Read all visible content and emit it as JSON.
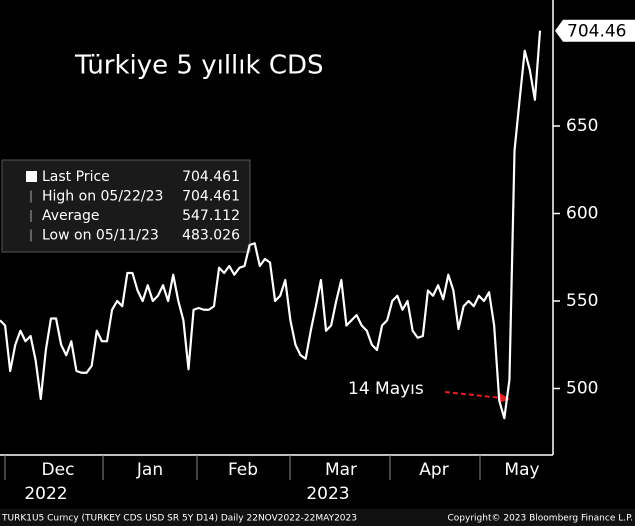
{
  "chart_data": {
    "type": "line",
    "title": "Türkiye 5 yıllık CDS",
    "series": [
      {
        "name": "Last Price",
        "color": "#ffffff",
        "values": [
          539,
          536,
          510,
          525,
          533,
          527,
          530,
          516,
          494,
          522,
          540,
          540,
          525,
          519,
          527,
          510,
          509,
          509,
          513,
          533,
          527,
          527,
          545,
          550,
          547,
          566,
          566,
          556,
          550,
          559,
          550,
          553,
          559,
          550,
          565,
          550,
          539,
          511,
          545,
          546,
          545,
          545,
          547,
          569,
          566,
          570,
          565,
          569,
          570,
          582,
          583,
          570,
          574,
          572,
          550,
          553,
          562,
          539,
          525,
          519,
          517,
          533,
          547,
          562,
          533,
          536,
          550,
          562,
          536,
          539,
          542,
          536,
          533,
          525,
          522,
          536,
          539,
          550,
          553,
          545,
          550,
          533,
          529,
          530,
          556,
          553,
          559,
          551,
          565,
          556,
          534,
          547,
          550,
          547,
          553,
          550,
          555,
          536,
          493,
          483.026,
          505,
          636,
          665,
          693,
          682,
          665,
          704.461
        ]
      }
    ],
    "ylim": [
      462,
      722
    ],
    "yticks": [
      500,
      550,
      600,
      650
    ],
    "months": [
      "Dec",
      "Jan",
      "Feb",
      "Mar",
      "Apr",
      "May"
    ],
    "years": [
      "2022",
      "2023"
    ],
    "last_value_label": 704.46,
    "legend": [
      {
        "label": "Last Price",
        "value": 704.461
      },
      {
        "label": "High on 05/22/23",
        "value": 704.461
      },
      {
        "label": "Average",
        "value": 547.112
      },
      {
        "label": "Low on 05/11/23",
        "value": 483.026
      }
    ],
    "annotation": "14 Mayıs",
    "footer_left": "TURK1U5 Curncy (TURKEY CDS USD SR 5Y D14)  Daily 22NOV2022-22MAY2023",
    "footer_right": "Copyright© 2023 Bloomberg Finance L.P."
  }
}
